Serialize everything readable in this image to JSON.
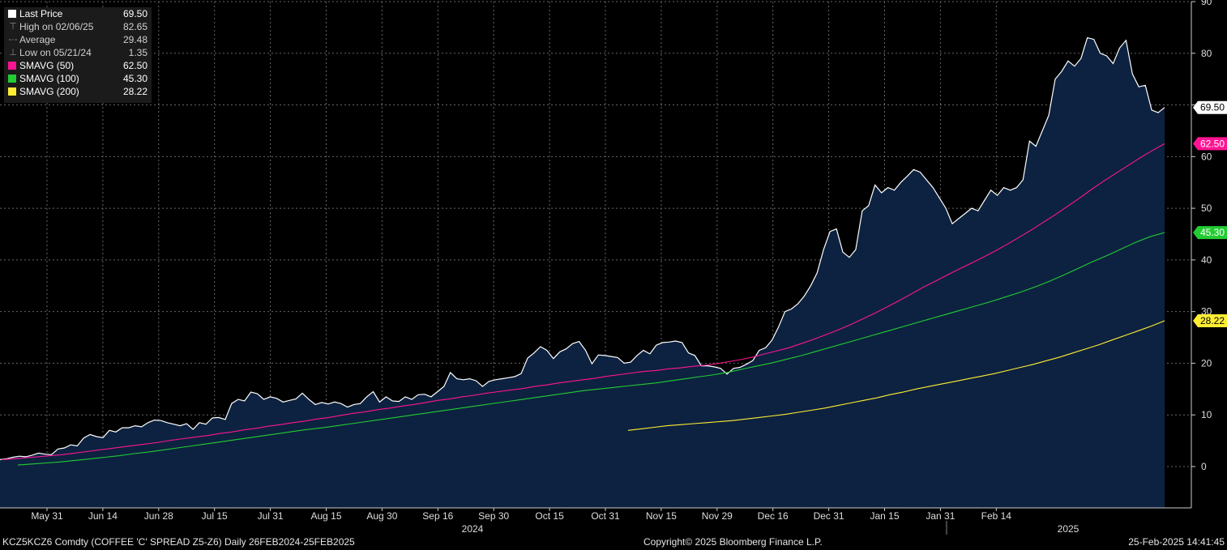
{
  "chart_data": {
    "type": "area",
    "ylim": [
      -8,
      90
    ],
    "y_ticks": [
      0,
      10,
      20,
      30,
      40,
      50,
      60,
      70,
      80,
      90
    ],
    "x_month_ticks": [
      "May 31",
      "Jun 14",
      "Jun 28",
      "Jul 15",
      "Jul 31",
      "Aug 15",
      "Aug 30",
      "Sep 16",
      "Sep 30",
      "Oct 15",
      "Oct 31",
      "Nov 15",
      "Nov 29",
      "Dec 16",
      "Dec 31",
      "Jan 15",
      "Jan 31",
      "Feb 14"
    ],
    "year_labels": [
      "2024",
      "2025"
    ],
    "grid": true,
    "legend_position": "top-left",
    "legend": [
      {
        "label": "Last Price",
        "value": "69.50",
        "marker": "swatch",
        "color": "#ffffff"
      },
      {
        "label": "High on 02/06/25",
        "value": "82.65",
        "marker": "high-glyph"
      },
      {
        "label": "Average",
        "value": "29.48",
        "marker": "avg-glyph"
      },
      {
        "label": "Low on 05/21/24",
        "value": "1.35",
        "marker": "low-glyph"
      },
      {
        "label": "SMAVG (50)",
        "value": "62.50",
        "marker": "swatch",
        "color": "#ff1493"
      },
      {
        "label": "SMAVG (100)",
        "value": "45.30",
        "marker": "swatch",
        "color": "#22cc33"
      },
      {
        "label": "SMAVG (200)",
        "value": "28.22",
        "marker": "swatch",
        "color": "#ffee33"
      }
    ],
    "series": [
      {
        "name": "Last Price",
        "color": "#ffffff",
        "fill": "#0d2240",
        "tag": "69.50",
        "values": [
          1.35,
          1.5,
          1.8,
          2.0,
          1.9,
          2.2,
          2.6,
          2.4,
          2.3,
          3.4,
          3.6,
          4.2,
          4.0,
          5.5,
          6.2,
          5.8,
          5.6,
          7.0,
          6.7,
          7.5,
          7.5,
          7.9,
          7.7,
          8.5,
          9.0,
          8.9,
          8.5,
          8.2,
          7.9,
          8.3,
          7.2,
          8.5,
          8.2,
          9.4,
          9.5,
          9.1,
          12.2,
          13.0,
          12.7,
          14.4,
          14.1,
          13.0,
          13.5,
          13.2,
          12.5,
          12.8,
          13.1,
          14.2,
          13.0,
          12.0,
          12.4,
          12.1,
          12.5,
          12.2,
          11.5,
          12.0,
          12.2,
          13.5,
          14.5,
          12.5,
          13.5,
          12.7,
          12.6,
          13.5,
          13.0,
          13.9,
          14.0,
          13.5,
          14.5,
          15.5,
          18.2,
          17.0,
          16.8,
          17.0,
          16.6,
          15.5,
          16.5,
          16.8,
          17.0,
          17.2,
          17.4,
          18.0,
          21.0,
          22.0,
          23.2,
          22.5,
          20.9,
          22.2,
          22.8,
          23.8,
          24.2,
          22.5,
          19.9,
          21.6,
          21.5,
          21.3,
          21.1,
          20.0,
          20.2,
          21.5,
          22.5,
          21.8,
          23.5,
          24.0,
          24.1,
          24.3,
          24.0,
          22.0,
          21.5,
          19.5,
          19.5,
          19.3,
          19.0,
          17.9,
          19.0,
          19.2,
          19.8,
          20.5,
          22.5,
          23.0,
          24.5,
          27.0,
          30.0,
          30.5,
          31.5,
          33.0,
          35.0,
          37.5,
          42.0,
          45.5,
          46.0,
          41.5,
          40.5,
          42.0,
          49.5,
          50.5,
          54.5,
          53.0,
          54.0,
          53.5,
          55.0,
          56.2,
          57.5,
          57.0,
          55.5,
          54.0,
          52.0,
          50.0,
          47.0,
          48.0,
          49.0,
          50.0,
          49.5,
          51.5,
          53.5,
          52.5,
          54.0,
          53.5,
          54.0,
          55.5,
          63.0,
          62.0,
          65.0,
          68.0,
          75.0,
          76.5,
          78.5,
          77.5,
          79.0,
          83.0,
          82.7,
          80.0,
          79.5,
          78.0,
          81.0,
          82.5,
          76.0,
          73.5,
          73.8,
          69.0,
          68.5,
          69.5
        ]
      },
      {
        "name": "SMAVG (50)",
        "color": "#ff1493",
        "tag": "62.50",
        "values": [
          1.35,
          1.5,
          1.7,
          1.9,
          2.1,
          2.3,
          2.6,
          2.9,
          3.2,
          3.5,
          3.8,
          4.1,
          4.4,
          4.7,
          5.1,
          5.4,
          5.7,
          6.0,
          6.4,
          6.7,
          7.1,
          7.4,
          7.8,
          8.1,
          8.5,
          8.8,
          9.2,
          9.5,
          9.9,
          10.3,
          10.6,
          11.0,
          11.3,
          11.7,
          12.0,
          12.4,
          12.8,
          13.1,
          13.5,
          13.8,
          14.2,
          14.5,
          14.8,
          15.1,
          15.5,
          15.8,
          16.2,
          16.5,
          16.8,
          17.1,
          17.5,
          17.8,
          18.1,
          18.4,
          18.6,
          18.9,
          19.1,
          19.4,
          19.6,
          19.9,
          20.3,
          20.7,
          21.2,
          21.8,
          22.4,
          23.0,
          23.8,
          24.6,
          25.5,
          26.4,
          27.4,
          28.5,
          29.6,
          30.8,
          32.0,
          33.3,
          34.6,
          35.8,
          37.0,
          38.2,
          39.3,
          40.5,
          41.7,
          43.0,
          44.4,
          45.8,
          47.3,
          48.8,
          50.4,
          52.0,
          53.7,
          55.3,
          56.8,
          58.3,
          59.8,
          61.2,
          62.5
        ]
      },
      {
        "name": "SMAVG (100)",
        "color": "#22cc33",
        "tag": "45.30",
        "values": [
          0.3,
          0.5,
          0.7,
          0.9,
          1.2,
          1.5,
          1.8,
          2.1,
          2.5,
          2.8,
          3.2,
          3.6,
          4.0,
          4.4,
          4.8,
          5.2,
          5.6,
          6.0,
          6.4,
          6.8,
          7.2,
          7.5,
          7.9,
          8.3,
          8.7,
          9.1,
          9.5,
          9.9,
          10.3,
          10.7,
          11.1,
          11.5,
          11.9,
          12.3,
          12.7,
          13.1,
          13.5,
          13.9,
          14.3,
          14.7,
          15.0,
          15.3,
          15.6,
          15.9,
          16.2,
          16.6,
          17.0,
          17.4,
          17.8,
          18.3,
          18.9,
          19.5,
          20.1,
          20.8,
          21.5,
          22.3,
          23.1,
          23.9,
          24.7,
          25.5,
          26.3,
          27.1,
          27.9,
          28.7,
          29.5,
          30.3,
          31.1,
          31.9,
          32.8,
          33.7,
          34.7,
          35.8,
          37.0,
          38.3,
          39.6,
          40.8,
          42.1,
          43.4,
          44.5,
          45.3
        ]
      },
      {
        "name": "SMAVG (200)",
        "color": "#ffee33",
        "tag": "28.22",
        "values": [
          7.0,
          7.3,
          7.6,
          7.9,
          8.1,
          8.3,
          8.5,
          8.7,
          8.9,
          9.2,
          9.5,
          9.8,
          10.1,
          10.5,
          10.9,
          11.3,
          11.8,
          12.3,
          12.8,
          13.3,
          13.9,
          14.4,
          15.0,
          15.5,
          16.0,
          16.5,
          17.0,
          17.5,
          18.0,
          18.6,
          19.2,
          19.8,
          20.5,
          21.2,
          22.0,
          22.8,
          23.6,
          24.5,
          25.4,
          26.3,
          27.2,
          28.22
        ]
      }
    ]
  },
  "footer": {
    "ticker": "KCZ5KCZ6 Comdty (COFFEE 'C' SPREAD Z5-Z6)  Daily 26FEB2024-25FEB2025",
    "copyright": "Copyright© 2025 Bloomberg Finance L.P.",
    "timestamp": "25-Feb-2025 14:41:45"
  }
}
